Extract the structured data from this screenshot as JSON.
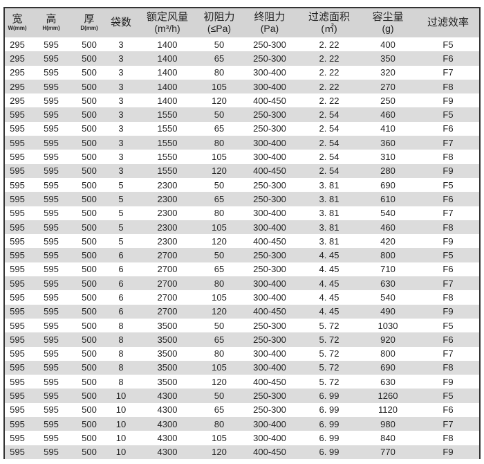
{
  "headers": [
    {
      "label": "宽",
      "sub": "W(mm)"
    },
    {
      "label": "高",
      "sub": "H(mm)"
    },
    {
      "label": "厚",
      "sub": "D(mm)"
    },
    {
      "label": "袋数"
    },
    {
      "label": "额定风量",
      "unit": "(m³/h)"
    },
    {
      "label": "初阻力",
      "unit": "(≤Pa)"
    },
    {
      "label": "终阻力",
      "unit": "(Pa)"
    },
    {
      "label": "过滤面积",
      "unit": "(㎡)"
    },
    {
      "label": "容尘量",
      "unit": "(g)"
    },
    {
      "label": "过滤效率"
    }
  ],
  "colors": {
    "header_bg": "#d4d4d4",
    "stripe_bg": "#dcdcdc",
    "border": "#333333"
  },
  "rows": [
    [
      "295",
      "595",
      "500",
      "3",
      "1400",
      "50",
      "250-300",
      "2. 22",
      "400",
      "F5"
    ],
    [
      "295",
      "595",
      "500",
      "3",
      "1400",
      "65",
      "250-300",
      "2. 22",
      "350",
      "F6"
    ],
    [
      "295",
      "595",
      "500",
      "3",
      "1400",
      "80",
      "300-400",
      "2. 22",
      "320",
      "F7"
    ],
    [
      "295",
      "595",
      "500",
      "3",
      "1400",
      "105",
      "300-400",
      "2. 22",
      "270",
      "F8"
    ],
    [
      "295",
      "595",
      "500",
      "3",
      "1400",
      "120",
      "400-450",
      "2. 22",
      "250",
      "F9"
    ],
    [
      "595",
      "595",
      "500",
      "3",
      "1550",
      "50",
      "250-300",
      "2. 54",
      "460",
      "F5"
    ],
    [
      "595",
      "595",
      "500",
      "3",
      "1550",
      "65",
      "250-300",
      "2. 54",
      "410",
      "F6"
    ],
    [
      "595",
      "595",
      "500",
      "3",
      "1550",
      "80",
      "300-400",
      "2. 54",
      "360",
      "F7"
    ],
    [
      "595",
      "595",
      "500",
      "3",
      "1550",
      "105",
      "300-400",
      "2. 54",
      "310",
      "F8"
    ],
    [
      "595",
      "595",
      "500",
      "3",
      "1550",
      "120",
      "400-450",
      "2. 54",
      "280",
      "F9"
    ],
    [
      "595",
      "595",
      "500",
      "5",
      "2300",
      "50",
      "250-300",
      "3. 81",
      "690",
      "F5"
    ],
    [
      "595",
      "595",
      "500",
      "5",
      "2300",
      "65",
      "250-300",
      "3. 81",
      "610",
      "F6"
    ],
    [
      "595",
      "595",
      "500",
      "5",
      "2300",
      "80",
      "300-400",
      "3. 81",
      "540",
      "F7"
    ],
    [
      "595",
      "595",
      "500",
      "5",
      "2300",
      "105",
      "300-400",
      "3. 81",
      "460",
      "F8"
    ],
    [
      "595",
      "595",
      "500",
      "5",
      "2300",
      "120",
      "400-450",
      "3. 81",
      "420",
      "F9"
    ],
    [
      "595",
      "595",
      "500",
      "6",
      "2700",
      "50",
      "250-300",
      "4. 45",
      "800",
      "F5"
    ],
    [
      "595",
      "595",
      "500",
      "6",
      "2700",
      "65",
      "250-300",
      "4. 45",
      "710",
      "F6"
    ],
    [
      "595",
      "595",
      "500",
      "6",
      "2700",
      "80",
      "300-400",
      "4. 45",
      "630",
      "F7"
    ],
    [
      "595",
      "595",
      "500",
      "6",
      "2700",
      "105",
      "300-400",
      "4. 45",
      "540",
      "F8"
    ],
    [
      "595",
      "595",
      "500",
      "6",
      "2700",
      "120",
      "400-450",
      "4. 45",
      "490",
      "F9"
    ],
    [
      "595",
      "595",
      "500",
      "8",
      "3500",
      "50",
      "250-300",
      "5. 72",
      "1030",
      "F5"
    ],
    [
      "595",
      "595",
      "500",
      "8",
      "3500",
      "65",
      "250-300",
      "5. 72",
      "920",
      "F6"
    ],
    [
      "595",
      "595",
      "500",
      "8",
      "3500",
      "80",
      "300-400",
      "5. 72",
      "800",
      "F7"
    ],
    [
      "595",
      "595",
      "500",
      "8",
      "3500",
      "105",
      "300-400",
      "5. 72",
      "690",
      "F8"
    ],
    [
      "595",
      "595",
      "500",
      "8",
      "3500",
      "120",
      "400-450",
      "5. 72",
      "630",
      "F9"
    ],
    [
      "595",
      "595",
      "500",
      "10",
      "4300",
      "50",
      "250-300",
      "6. 99",
      "1260",
      "F5"
    ],
    [
      "595",
      "595",
      "500",
      "10",
      "4300",
      "65",
      "250-300",
      "6. 99",
      "1120",
      "F6"
    ],
    [
      "595",
      "595",
      "500",
      "10",
      "4300",
      "80",
      "300-400",
      "6. 99",
      "980",
      "F7"
    ],
    [
      "595",
      "595",
      "500",
      "10",
      "4300",
      "105",
      "300-400",
      "6. 99",
      "840",
      "F8"
    ],
    [
      "595",
      "595",
      "500",
      "10",
      "4300",
      "120",
      "400-450",
      "6. 99",
      "770",
      "F9"
    ]
  ]
}
